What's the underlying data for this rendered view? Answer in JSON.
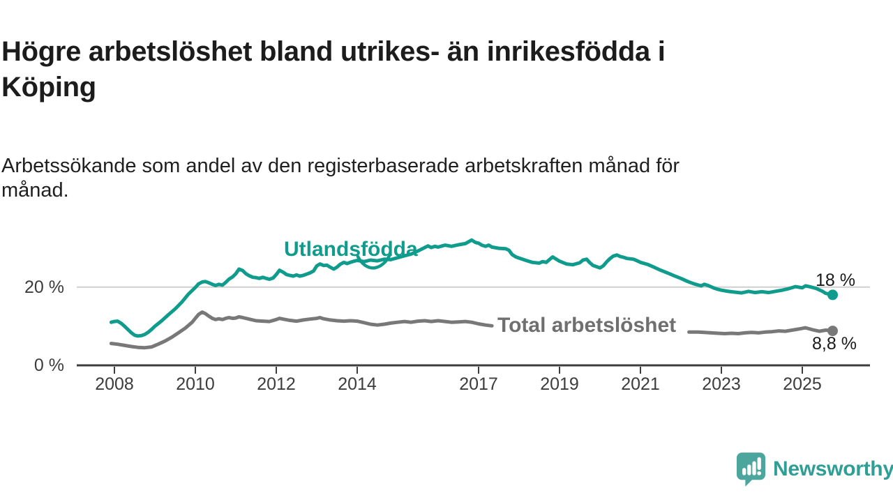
{
  "header": {
    "title": "Högre arbetslöshet bland utrikes- än inrikesfödda i\nKöping",
    "subtitle": "Arbetssökande som andel av den registerbaserade arbetskraften månad för\nmånad."
  },
  "branding": {
    "name": "Newsworthy",
    "icon_color": "#4CA69D",
    "wordmark_color": "#2F9F95"
  },
  "colors": {
    "accent_teal": "#109C8D",
    "series_gray": "#787878",
    "axis": "#3d3d3d",
    "gridline": "#cfcfcf",
    "text": "#1c1c1c"
  },
  "chart_data": {
    "type": "line",
    "unit": "percent",
    "x_axis": {
      "ticks": [
        2008,
        2010,
        2012,
        2014,
        2017,
        2019,
        2021,
        2023,
        2025
      ],
      "range": [
        2007.9,
        2025.75
      ]
    },
    "y_axis": {
      "ticks": [
        {
          "value": 0,
          "label": "0 %"
        },
        {
          "value": 20,
          "label": "20 %"
        }
      ],
      "gridline_values": [
        20
      ],
      "range": [
        0,
        33
      ]
    },
    "series": [
      {
        "name": "Utlandsfödda",
        "color": "#109C8D",
        "end_label": "18 %",
        "end_value": 18,
        "segments": [
          [
            [
              2007.92,
              11.0
            ],
            [
              2008.0,
              11.2
            ],
            [
              2008.08,
              11.3
            ],
            [
              2008.17,
              10.7
            ],
            [
              2008.25,
              10.0
            ],
            [
              2008.33,
              9.2
            ],
            [
              2008.42,
              8.3
            ],
            [
              2008.5,
              7.7
            ],
            [
              2008.58,
              7.5
            ],
            [
              2008.67,
              7.6
            ],
            [
              2008.75,
              7.9
            ],
            [
              2008.83,
              8.4
            ],
            [
              2008.92,
              9.2
            ],
            [
              2009.0,
              10.0
            ],
            [
              2009.17,
              11.4
            ],
            [
              2009.33,
              12.9
            ],
            [
              2009.5,
              14.4
            ],
            [
              2009.67,
              16.2
            ],
            [
              2009.83,
              18.2
            ],
            [
              2010.0,
              19.9
            ],
            [
              2010.08,
              20.8
            ],
            [
              2010.17,
              21.3
            ],
            [
              2010.25,
              21.4
            ],
            [
              2010.33,
              21.1
            ],
            [
              2010.42,
              20.7
            ],
            [
              2010.5,
              20.4
            ],
            [
              2010.58,
              20.7
            ],
            [
              2010.67,
              20.5
            ],
            [
              2010.75,
              21.2
            ],
            [
              2010.83,
              22.0
            ],
            [
              2010.92,
              22.6
            ],
            [
              2011.0,
              23.4
            ],
            [
              2011.08,
              24.6
            ],
            [
              2011.17,
              24.2
            ],
            [
              2011.25,
              23.4
            ],
            [
              2011.33,
              22.9
            ],
            [
              2011.42,
              22.5
            ],
            [
              2011.5,
              22.4
            ],
            [
              2011.58,
              22.2
            ],
            [
              2011.67,
              22.5
            ],
            [
              2011.75,
              22.2
            ],
            [
              2011.83,
              22.0
            ],
            [
              2011.92,
              22.3
            ],
            [
              2012.0,
              23.2
            ],
            [
              2012.08,
              24.3
            ],
            [
              2012.17,
              23.8
            ],
            [
              2012.25,
              23.2
            ],
            [
              2012.33,
              23.0
            ],
            [
              2012.42,
              22.8
            ],
            [
              2012.5,
              23.1
            ],
            [
              2012.58,
              22.8
            ],
            [
              2012.67,
              23.0
            ],
            [
              2012.75,
              23.3
            ],
            [
              2012.83,
              23.6
            ],
            [
              2012.92,
              24.1
            ],
            [
              2013.0,
              25.4
            ],
            [
              2013.08,
              25.9
            ],
            [
              2013.17,
              25.5
            ],
            [
              2013.25,
              25.6
            ],
            [
              2013.33,
              25.1
            ],
            [
              2013.42,
              24.6
            ],
            [
              2013.5,
              25.1
            ],
            [
              2013.58,
              25.8
            ],
            [
              2013.67,
              26.3
            ],
            [
              2013.75,
              26.0
            ],
            [
              2013.83,
              26.3
            ],
            [
              2013.92,
              26.6
            ],
            [
              2014.0,
              26.8
            ],
            [
              2014.17,
              26.5
            ],
            [
              2014.33,
              26.9
            ],
            [
              2014.5,
              26.7
            ],
            [
              2014.67,
              27.1
            ],
            [
              2014.83,
              27.0
            ],
            [
              2015.0,
              27.5
            ],
            [
              2015.17,
              28.0
            ],
            [
              2015.33,
              28.4
            ],
            [
              2015.5,
              29.2
            ],
            [
              2015.67,
              30.1
            ],
            [
              2015.75,
              30.5
            ],
            [
              2015.83,
              30.1
            ],
            [
              2015.92,
              30.4
            ],
            [
              2016.0,
              30.2
            ],
            [
              2016.17,
              30.7
            ],
            [
              2016.33,
              30.4
            ],
            [
              2016.5,
              30.8
            ],
            [
              2016.67,
              31.1
            ],
            [
              2016.83,
              32.0
            ],
            [
              2016.92,
              31.4
            ],
            [
              2017.0,
              31.2
            ],
            [
              2017.08,
              30.7
            ],
            [
              2017.17,
              30.4
            ],
            [
              2017.25,
              30.7
            ],
            [
              2017.33,
              30.2
            ],
            [
              2017.5,
              29.9
            ],
            [
              2017.67,
              29.8
            ],
            [
              2017.75,
              29.4
            ],
            [
              2017.83,
              28.3
            ],
            [
              2017.92,
              27.7
            ],
            [
              2018.0,
              27.4
            ],
            [
              2018.17,
              26.8
            ],
            [
              2018.33,
              26.3
            ],
            [
              2018.5,
              26.1
            ],
            [
              2018.58,
              26.5
            ],
            [
              2018.67,
              26.3
            ],
            [
              2018.75,
              27.0
            ],
            [
              2018.83,
              27.7
            ],
            [
              2018.92,
              27.1
            ],
            [
              2019.0,
              26.6
            ],
            [
              2019.17,
              25.9
            ],
            [
              2019.33,
              25.7
            ],
            [
              2019.5,
              26.2
            ],
            [
              2019.58,
              26.9
            ],
            [
              2019.67,
              27.1
            ],
            [
              2019.75,
              26.2
            ],
            [
              2019.83,
              25.5
            ],
            [
              2020.0,
              24.9
            ],
            [
              2020.08,
              25.4
            ],
            [
              2020.17,
              26.5
            ],
            [
              2020.25,
              27.3
            ],
            [
              2020.33,
              27.9
            ],
            [
              2020.42,
              28.2
            ],
            [
              2020.5,
              27.8
            ],
            [
              2020.58,
              27.6
            ],
            [
              2020.67,
              27.3
            ],
            [
              2020.83,
              27.1
            ],
            [
              2020.92,
              26.7
            ],
            [
              2021.0,
              26.3
            ],
            [
              2021.17,
              25.8
            ],
            [
              2021.33,
              25.1
            ],
            [
              2021.5,
              24.3
            ],
            [
              2021.67,
              23.6
            ],
            [
              2021.83,
              22.9
            ],
            [
              2022.0,
              22.2
            ],
            [
              2022.17,
              21.4
            ],
            [
              2022.33,
              20.8
            ],
            [
              2022.5,
              20.3
            ],
            [
              2022.58,
              20.7
            ],
            [
              2022.67,
              20.4
            ],
            [
              2022.83,
              19.7
            ],
            [
              2022.92,
              19.4
            ],
            [
              2023.0,
              19.2
            ],
            [
              2023.17,
              18.9
            ],
            [
              2023.33,
              18.7
            ],
            [
              2023.5,
              18.5
            ],
            [
              2023.67,
              18.9
            ],
            [
              2023.83,
              18.6
            ],
            [
              2024.0,
              18.8
            ],
            [
              2024.17,
              18.6
            ],
            [
              2024.33,
              18.9
            ],
            [
              2024.5,
              19.2
            ],
            [
              2024.67,
              19.6
            ],
            [
              2024.83,
              20.1
            ],
            [
              2025.0,
              19.8
            ],
            [
              2025.08,
              20.3
            ],
            [
              2025.17,
              20.1
            ],
            [
              2025.33,
              19.7
            ],
            [
              2025.5,
              18.9
            ],
            [
              2025.58,
              18.4
            ],
            [
              2025.75,
              18.0
            ]
          ]
        ]
      },
      {
        "name": "Total arbetslöshet",
        "color": "#787878",
        "end_label": "8,8 %",
        "end_value": 8.8,
        "segments": [
          [
            [
              2007.92,
              5.6
            ],
            [
              2008.08,
              5.4
            ],
            [
              2008.25,
              5.1
            ],
            [
              2008.42,
              4.8
            ],
            [
              2008.58,
              4.6
            ],
            [
              2008.75,
              4.5
            ],
            [
              2008.92,
              4.7
            ],
            [
              2009.08,
              5.4
            ],
            [
              2009.25,
              6.2
            ],
            [
              2009.42,
              7.2
            ],
            [
              2009.58,
              8.3
            ],
            [
              2009.75,
              9.5
            ],
            [
              2009.92,
              11.0
            ],
            [
              2010.0,
              12.0
            ],
            [
              2010.08,
              13.0
            ],
            [
              2010.17,
              13.6
            ],
            [
              2010.25,
              13.2
            ],
            [
              2010.33,
              12.6
            ],
            [
              2010.42,
              12.0
            ],
            [
              2010.5,
              11.7
            ],
            [
              2010.58,
              11.9
            ],
            [
              2010.67,
              11.7
            ],
            [
              2010.75,
              12.0
            ],
            [
              2010.83,
              12.2
            ],
            [
              2010.92,
              12.0
            ],
            [
              2011.0,
              12.1
            ],
            [
              2011.08,
              12.4
            ],
            [
              2011.17,
              12.2
            ],
            [
              2011.33,
              11.8
            ],
            [
              2011.5,
              11.4
            ],
            [
              2011.67,
              11.3
            ],
            [
              2011.83,
              11.2
            ],
            [
              2012.0,
              11.7
            ],
            [
              2012.08,
              12.0
            ],
            [
              2012.17,
              11.8
            ],
            [
              2012.33,
              11.5
            ],
            [
              2012.5,
              11.3
            ],
            [
              2012.67,
              11.6
            ],
            [
              2012.83,
              11.8
            ],
            [
              2013.0,
              12.0
            ],
            [
              2013.08,
              12.2
            ],
            [
              2013.17,
              11.9
            ],
            [
              2013.33,
              11.6
            ],
            [
              2013.5,
              11.4
            ],
            [
              2013.67,
              11.3
            ],
            [
              2013.83,
              11.4
            ],
            [
              2014.0,
              11.3
            ],
            [
              2014.17,
              10.9
            ],
            [
              2014.33,
              10.5
            ],
            [
              2014.5,
              10.3
            ],
            [
              2014.67,
              10.5
            ],
            [
              2014.83,
              10.8
            ],
            [
              2015.0,
              11.0
            ],
            [
              2015.17,
              11.2
            ],
            [
              2015.33,
              11.0
            ],
            [
              2015.5,
              11.3
            ],
            [
              2015.67,
              11.4
            ],
            [
              2015.83,
              11.2
            ],
            [
              2016.0,
              11.4
            ],
            [
              2016.17,
              11.2
            ],
            [
              2016.33,
              11.0
            ],
            [
              2016.5,
              11.1
            ],
            [
              2016.67,
              11.2
            ],
            [
              2016.83,
              11.0
            ],
            [
              2017.0,
              10.6
            ],
            [
              2017.17,
              10.3
            ],
            [
              2017.33,
              10.1
            ]
          ],
          [
            [
              2022.2,
              8.5
            ],
            [
              2022.42,
              8.5
            ],
            [
              2022.58,
              8.4
            ],
            [
              2022.75,
              8.3
            ],
            [
              2022.92,
              8.2
            ],
            [
              2023.08,
              8.1
            ],
            [
              2023.25,
              8.2
            ],
            [
              2023.42,
              8.1
            ],
            [
              2023.58,
              8.3
            ],
            [
              2023.75,
              8.4
            ],
            [
              2023.92,
              8.3
            ],
            [
              2024.08,
              8.5
            ],
            [
              2024.25,
              8.6
            ],
            [
              2024.42,
              8.8
            ],
            [
              2024.58,
              8.7
            ],
            [
              2024.75,
              9.0
            ],
            [
              2024.92,
              9.3
            ],
            [
              2025.08,
              9.6
            ],
            [
              2025.25,
              9.1
            ],
            [
              2025.42,
              8.7
            ],
            [
              2025.58,
              9.0
            ],
            [
              2025.75,
              8.8
            ]
          ]
        ]
      }
    ]
  }
}
